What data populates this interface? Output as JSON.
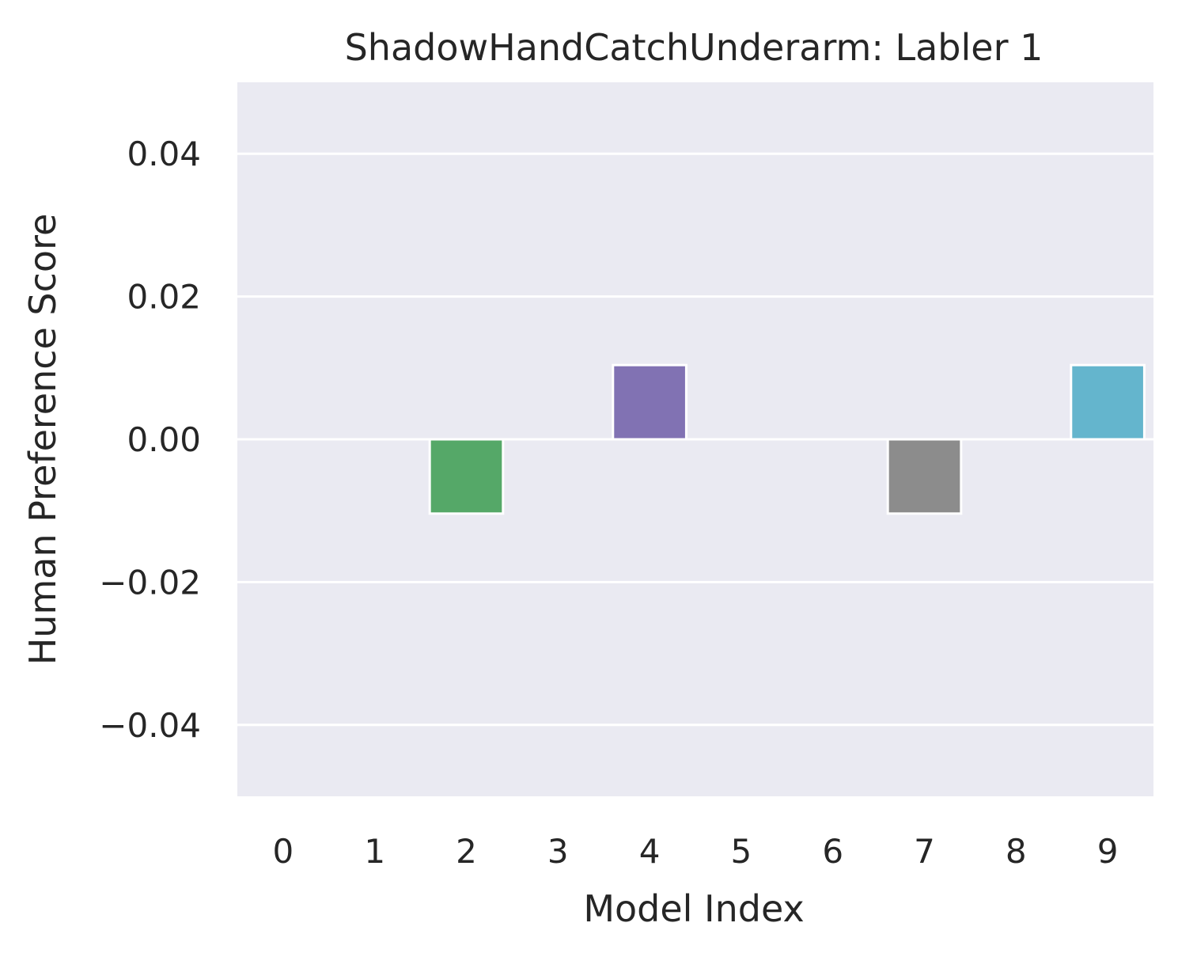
{
  "chart_data": {
    "type": "bar",
    "title": "ShadowHandCatchUnderarm: Labler 1",
    "xlabel": "Model Index",
    "ylabel": "Human Preference Score",
    "categories": [
      "0",
      "1",
      "2",
      "3",
      "4",
      "5",
      "6",
      "7",
      "8",
      "9"
    ],
    "values": [
      0,
      0,
      -0.0104,
      0,
      0.0104,
      0,
      0,
      -0.0104,
      0,
      0.0104
    ],
    "ylim": [
      -0.05,
      0.05
    ],
    "yticks": [
      0.04,
      0.02,
      0.0,
      -0.02,
      -0.04
    ],
    "ytick_labels": [
      "0.04",
      "0.02",
      "0.00",
      "−0.02",
      "−0.04"
    ],
    "grid": true,
    "background_color": "#eaeaf2",
    "grid_color": "#ffffff",
    "bar_colors": [
      "#4c72b0",
      "#dd8452",
      "#55a868",
      "#c44e52",
      "#8172b3",
      "#937860",
      "#da8bc3",
      "#8c8c8c",
      "#ccb974",
      "#64b5cd"
    ]
  }
}
